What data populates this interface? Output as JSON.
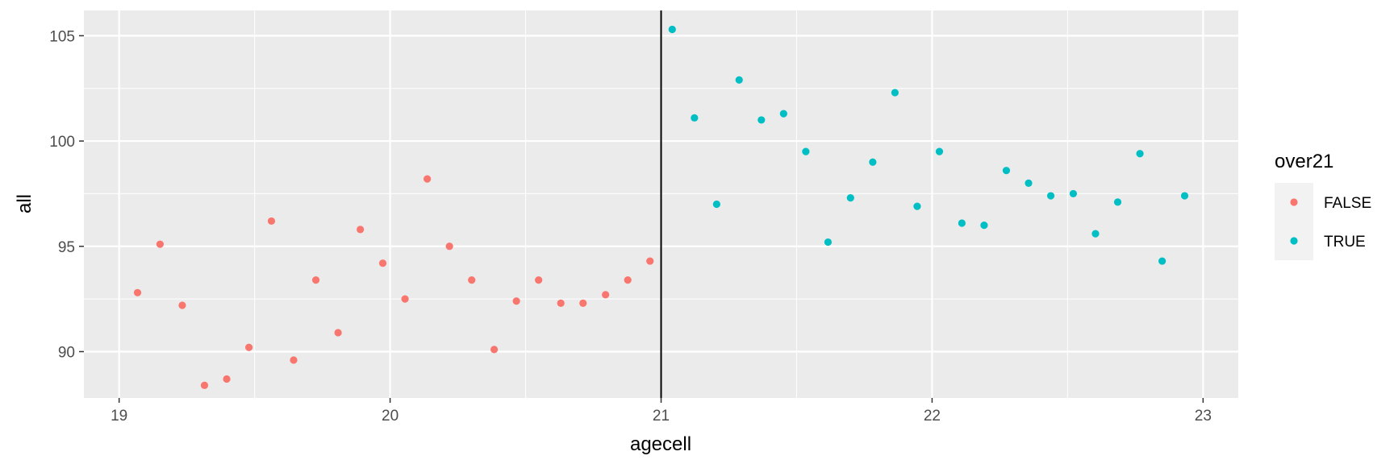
{
  "chart_data": {
    "type": "scatter",
    "title": "",
    "xlabel": "agecell",
    "ylabel": "all",
    "xlim": [
      18.87,
      23.13
    ],
    "ylim": [
      87.8,
      106.2
    ],
    "xticks": [
      19,
      20,
      21,
      22,
      23
    ],
    "yticks": [
      90,
      95,
      100,
      105
    ],
    "grid": true,
    "vline": 21,
    "legend": {
      "title": "over21",
      "position": "right"
    },
    "series": [
      {
        "name": "FALSE",
        "color": "#F8766D",
        "points": [
          [
            19.068,
            92.8
          ],
          [
            19.151,
            95.1
          ],
          [
            19.233,
            92.2
          ],
          [
            19.315,
            88.4
          ],
          [
            19.397,
            88.7
          ],
          [
            19.479,
            90.2
          ],
          [
            19.562,
            96.2
          ],
          [
            19.644,
            89.6
          ],
          [
            19.726,
            93.4
          ],
          [
            19.808,
            90.9
          ],
          [
            19.89,
            95.8
          ],
          [
            19.973,
            94.2
          ],
          [
            20.055,
            92.5
          ],
          [
            20.137,
            98.2
          ],
          [
            20.219,
            95.0
          ],
          [
            20.301,
            93.4
          ],
          [
            20.384,
            90.1
          ],
          [
            20.466,
            92.4
          ],
          [
            20.548,
            93.4
          ],
          [
            20.63,
            92.3
          ],
          [
            20.712,
            92.3
          ],
          [
            20.795,
            92.7
          ],
          [
            20.877,
            93.4
          ],
          [
            20.959,
            94.3
          ]
        ]
      },
      {
        "name": "TRUE",
        "color": "#00BFC4",
        "points": [
          [
            21.041,
            105.3
          ],
          [
            21.123,
            101.1
          ],
          [
            21.205,
            97.0
          ],
          [
            21.288,
            102.9
          ],
          [
            21.37,
            101.0
          ],
          [
            21.452,
            101.3
          ],
          [
            21.534,
            99.5
          ],
          [
            21.616,
            95.2
          ],
          [
            21.699,
            97.3
          ],
          [
            21.781,
            99.0
          ],
          [
            21.863,
            102.3
          ],
          [
            21.945,
            96.9
          ],
          [
            22.027,
            99.5
          ],
          [
            22.11,
            96.1
          ],
          [
            22.192,
            96.0
          ],
          [
            22.274,
            98.6
          ],
          [
            22.356,
            98.0
          ],
          [
            22.438,
            97.4
          ],
          [
            22.521,
            97.5
          ],
          [
            22.603,
            95.6
          ],
          [
            22.685,
            97.1
          ],
          [
            22.767,
            99.4
          ],
          [
            22.849,
            94.3
          ],
          [
            22.932,
            97.4
          ]
        ]
      }
    ]
  }
}
